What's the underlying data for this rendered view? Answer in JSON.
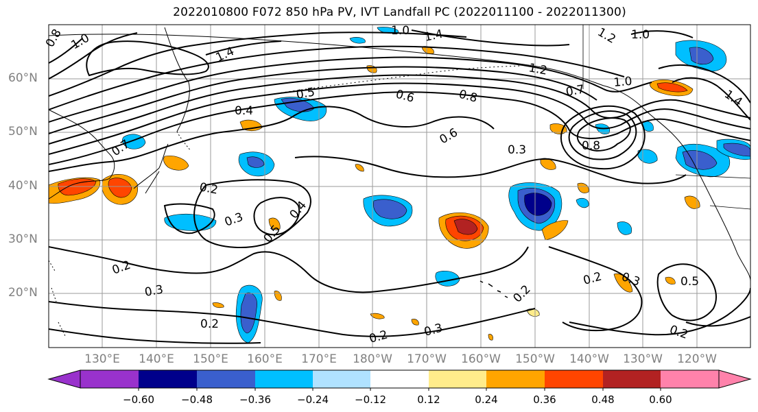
{
  "title": "2022010800 F072 850 hPa PV, IVT Landfall PC (2022011100 - 2022011300)",
  "lat_labels": [
    "60°N",
    "50°N",
    "40°N",
    "30°N",
    "20°N"
  ],
  "lon_labels": [
    "130°E",
    "140°E",
    "150°E",
    "160°E",
    "170°E",
    "180°W",
    "170°W",
    "160°W",
    "150°W",
    "140°W",
    "130°W",
    "120°W"
  ],
  "colorbar": {
    "ticks": [
      "−0.60",
      "−0.48",
      "−0.36",
      "−0.24",
      "−0.12",
      "0.12",
      "0.24",
      "0.36",
      "0.48",
      "0.60"
    ],
    "colors": [
      "#9932cc",
      "#00008b",
      "#3a5fcd",
      "#00bfff",
      "#b0e2ff",
      "#ffffff",
      "#ffec8b",
      "#ffa500",
      "#ff4500",
      "#b22222",
      "#ff82ab"
    ]
  },
  "contour_labels": [
    "0.8",
    "1.0",
    "1.4",
    "1.0",
    "1.4",
    "1.2",
    "1.0",
    "0.7",
    "0.4",
    "0.5",
    "0.6",
    "0.8",
    "1.2",
    "0.7",
    "1.0",
    "1.4",
    "0.6",
    "0.3",
    "0.8",
    "0.2",
    "0.3",
    "0.4",
    "0.5",
    "0.2",
    "0.3",
    "0.2",
    "0.2",
    "0.3",
    "0.2",
    "0.2",
    "0.3",
    "0.5",
    "0.2"
  ]
}
